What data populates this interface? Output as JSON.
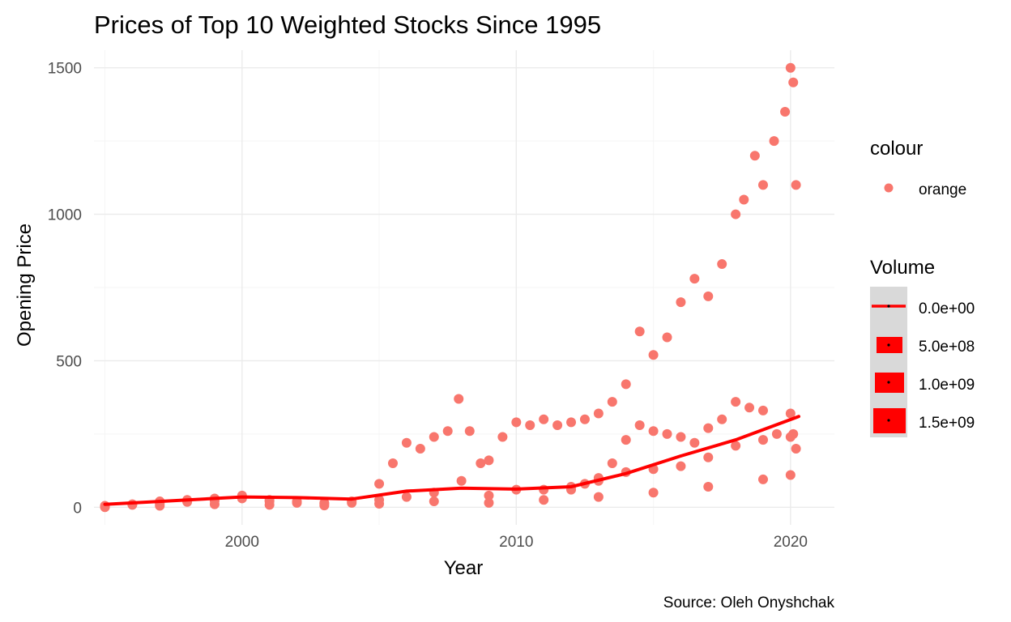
{
  "chart_data": {
    "type": "scatter",
    "title": "Prices of Top 10 Weighted Stocks Since 1995",
    "xlabel": "Year",
    "ylabel": "Opening Price",
    "caption": "Source: Oleh Onyshchak",
    "xlim": [
      1994.6,
      2021.6
    ],
    "ylim": [
      -60,
      1560
    ],
    "x_ticks": [
      2000,
      2010,
      2020
    ],
    "x_tick_labels": [
      "2000",
      "2010",
      "2020"
    ],
    "y_ticks": [
      0,
      500,
      1000,
      1500
    ],
    "y_tick_labels": [
      "0",
      "500",
      "1000",
      "1500"
    ],
    "grid": true,
    "legend_position": "right",
    "colors": {
      "points": "#F8766D",
      "trend": "#FF0000",
      "grid_major": "#EBEBEB",
      "legend_key_bg": "#D9D9D9"
    },
    "legend": {
      "colour": {
        "title": "colour",
        "entries": [
          "orange"
        ]
      },
      "volume": {
        "title": "Volume",
        "entries": [
          "0.0e+00",
          "5.0e+08",
          "1.0e+09",
          "1.5e+09"
        ]
      }
    },
    "series": [
      {
        "kind": "points",
        "x": [
          1995.0,
          1996.0,
          1997.0,
          1998.0,
          1999.0,
          2000.0,
          2001.0,
          2002.0,
          2003.0,
          2004.0,
          2005.0,
          2005.5,
          2006.0,
          2006.5,
          2007.0,
          2007.5,
          2007.9,
          2008.3,
          2008.7,
          2009.0,
          2009.5,
          2010.0,
          2010.5,
          2011.0,
          2011.5,
          2012.0,
          2012.5,
          2013.0,
          2013.5,
          2014.0,
          2014.5,
          2015.0,
          2015.5,
          2016.0,
          2016.5,
          2017.0,
          2017.5,
          2018.0,
          2018.3,
          2018.7,
          2019.0,
          2019.4,
          2019.8,
          2020.0,
          2020.1,
          2020.2
        ],
        "y": [
          0,
          10,
          20,
          25,
          30,
          40,
          25,
          20,
          15,
          20,
          80,
          150,
          220,
          200,
          240,
          260,
          370,
          260,
          150,
          160,
          240,
          290,
          280,
          300,
          280,
          290,
          300,
          320,
          360,
          420,
          600,
          520,
          580,
          700,
          780,
          720,
          830,
          1000,
          1050,
          1200,
          1100,
          1250,
          1350,
          1500,
          1450,
          1100
        ]
      },
      {
        "kind": "points",
        "x": [
          2012.0,
          2012.5,
          2013.0,
          2013.5,
          2014.0,
          2014.5,
          2015.0,
          2015.5,
          2016.0,
          2016.5,
          2017.0,
          2017.5,
          2018.0,
          2018.5,
          2019.0,
          2019.5,
          2020.0,
          2020.1,
          2020.2
        ],
        "y": [
          60,
          80,
          100,
          150,
          230,
          280,
          260,
          250,
          240,
          220,
          270,
          300,
          360,
          340,
          330,
          250,
          320,
          250,
          200
        ]
      },
      {
        "kind": "points",
        "x": [
          1995.0,
          1996.0,
          1997.0,
          1998.0,
          1999.0,
          2000.0,
          2001.0,
          2002.0,
          2003.0,
          2004.0,
          2005.0,
          2006.0,
          2007.0,
          2008.0,
          2009.0,
          2010.0,
          2011.0,
          2012.0,
          2013.0,
          2014.0,
          2015.0,
          2016.0,
          2017.0,
          2018.0,
          2019.0,
          2020.0
        ],
        "y": [
          5,
          8,
          12,
          18,
          22,
          30,
          20,
          15,
          12,
          15,
          25,
          35,
          50,
          90,
          40,
          60,
          60,
          70,
          90,
          120,
          130,
          140,
          170,
          210,
          230,
          240
        ]
      },
      {
        "kind": "points",
        "x": [
          1995.0,
          1997.0,
          1999.0,
          2001.0,
          2003.0,
          2005.0,
          2007.0,
          2009.0,
          2011.0,
          2013.0,
          2015.0,
          2017.0,
          2019.0,
          2020.0
        ],
        "y": [
          2,
          5,
          10,
          8,
          6,
          12,
          20,
          15,
          25,
          35,
          50,
          70,
          95,
          110
        ]
      },
      {
        "kind": "trend",
        "x": [
          1995,
          1997,
          2000,
          2002,
          2004,
          2006,
          2008,
          2010,
          2012,
          2014,
          2016,
          2018,
          2020.3
        ],
        "y": [
          10,
          20,
          35,
          33,
          28,
          55,
          65,
          62,
          70,
          115,
          175,
          230,
          310
        ]
      }
    ]
  }
}
